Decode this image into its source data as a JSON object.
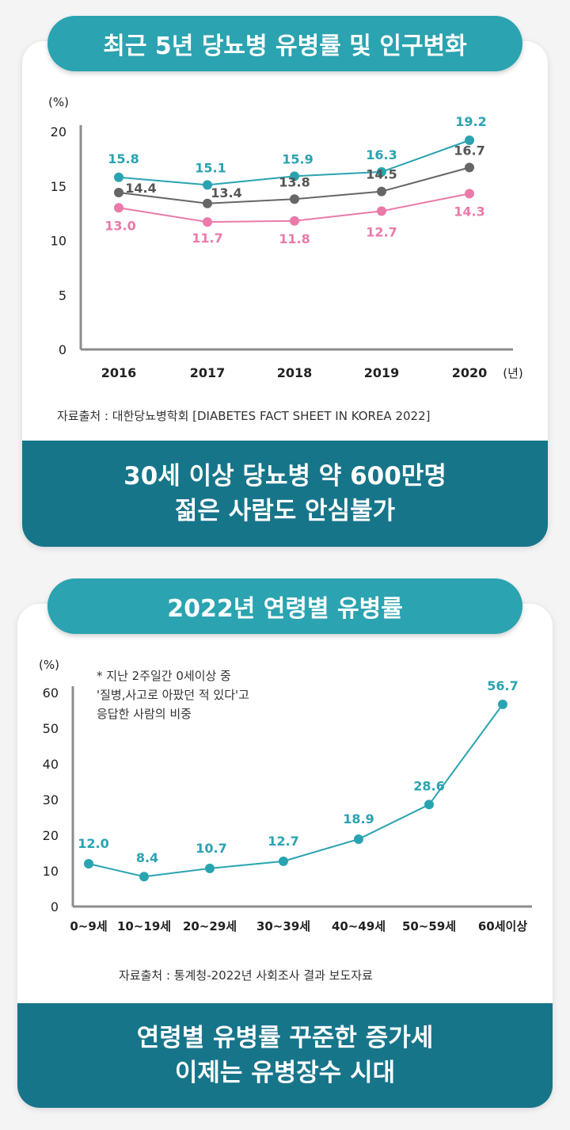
{
  "chart1": {
    "title": "최근 5년 당뇨병 유병률 및 인구변화",
    "source": "자료출처 : 대한당뇨병학회  [DIABETES FACT SHEET IN KOREA 2022]",
    "banner": [
      "30세 이상 당뇨병 약 600만명",
      "젊은 사람도 안심불가"
    ],
    "y_unit": "(%)",
    "x_unit": "(년)",
    "colors": {
      "teal": "#2aa3b1",
      "gray": "#666666",
      "pink": "#e97aaa"
    }
  },
  "chart2": {
    "title": "2022년 연령별 유병률",
    "source": "자료출처 :  통계청-2022년 사회조사 결과 보도자료",
    "banner": [
      "연령별 유병률 꾸준한 증가세",
      "이제는 유병장수 시대"
    ],
    "y_unit": "(%)",
    "note": [
      "* 지난 2주일간 0세이상 중",
      "'질병,사고로 아팠던 적 있다'고",
      "응답한 사람의 비중"
    ]
  },
  "chart_data": [
    {
      "type": "line",
      "title": "최근 5년 당뇨병 유병률 및 인구변화",
      "x": [
        "2016",
        "2017",
        "2018",
        "2019",
        "2020"
      ],
      "yticks": [
        0,
        5,
        10,
        15,
        20
      ],
      "ylim": [
        0,
        20
      ],
      "ylabel": "(%)",
      "xlabel": "(년)",
      "series": [
        {
          "color": "#2aa3b1",
          "values": [
            15.8,
            15.1,
            15.9,
            16.3,
            19.2
          ]
        },
        {
          "color": "#666666",
          "values": [
            14.4,
            13.4,
            13.8,
            14.5,
            16.7
          ]
        },
        {
          "color": "#e97aaa",
          "values": [
            13.0,
            11.7,
            11.8,
            12.7,
            14.3
          ]
        }
      ],
      "labels": [
        [
          "15.8",
          "15.1",
          "15.9",
          "16.3",
          "19.2"
        ],
        [
          "14.4",
          "13.4",
          "13.8",
          "14.5",
          "16.7"
        ],
        [
          "13.0",
          "11.7",
          "11.8",
          "12.7",
          "14.3"
        ]
      ]
    },
    {
      "type": "line",
      "title": "2022년 연령별 유병률",
      "x": [
        "0~9세",
        "10~19세",
        "20~29세",
        "30~39세",
        "40~49세",
        "50~59세",
        "60세이상"
      ],
      "yticks": [
        0,
        10,
        20,
        30,
        40,
        50,
        60
      ],
      "ylim": [
        0,
        60
      ],
      "ylabel": "(%)",
      "series": [
        {
          "color": "#2aa3b1",
          "values": [
            12.0,
            8.4,
            10.7,
            12.7,
            18.9,
            28.6,
            56.7
          ]
        }
      ],
      "labels": [
        [
          "12.0",
          "8.4",
          "10.7",
          "12.7",
          "18.9",
          "28.6",
          "56.7"
        ]
      ]
    }
  ]
}
